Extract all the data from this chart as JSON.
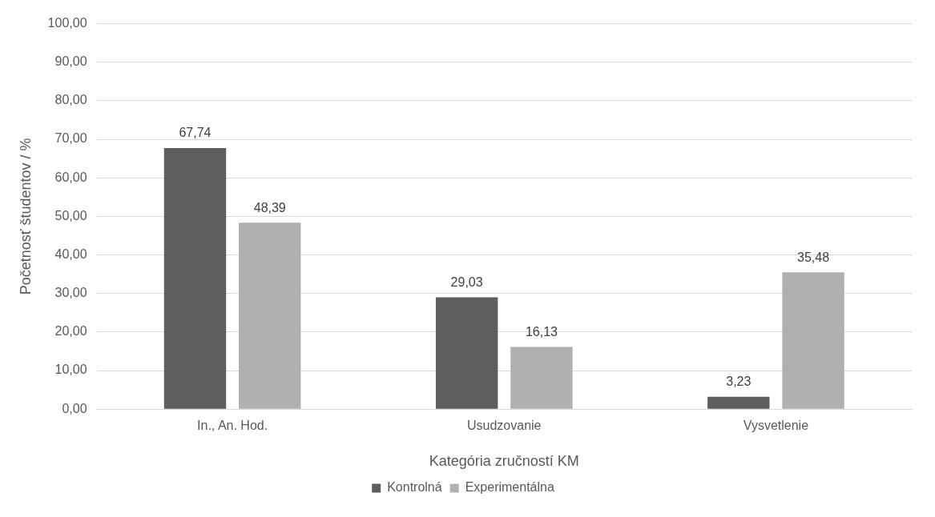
{
  "chart_data": {
    "type": "bar",
    "xlabel": "Kategória zručností KM",
    "ylabel": "Početnosť študentov / %",
    "categories": [
      "In., An. Hod.",
      "Usudzovanie",
      "Vysvetlenie"
    ],
    "series": [
      {
        "name": "Kontrolná",
        "color": "#5e5e5e",
        "values": [
          67.74,
          29.03,
          3.23
        ],
        "value_labels": [
          "67,74",
          "29,03",
          "3,23"
        ]
      },
      {
        "name": "Experimentálna",
        "color": "#b0b0b0",
        "values": [
          48.39,
          16.13,
          35.48
        ],
        "value_labels": [
          "48,39",
          "16,13",
          "35,48"
        ]
      }
    ],
    "ylim": [
      0,
      100
    ],
    "yticks": [
      {
        "value": 0,
        "label": "0,00"
      },
      {
        "value": 10,
        "label": "10,00"
      },
      {
        "value": 20,
        "label": "20,00"
      },
      {
        "value": 30,
        "label": "30,00"
      },
      {
        "value": 40,
        "label": "40,00"
      },
      {
        "value": 50,
        "label": "50,00"
      },
      {
        "value": 60,
        "label": "60,00"
      },
      {
        "value": 70,
        "label": "70,00"
      },
      {
        "value": 80,
        "label": "80,00"
      },
      {
        "value": 90,
        "label": "90,00"
      },
      {
        "value": 100,
        "label": "100,00"
      }
    ],
    "grid": "y",
    "legend": "bottom"
  }
}
